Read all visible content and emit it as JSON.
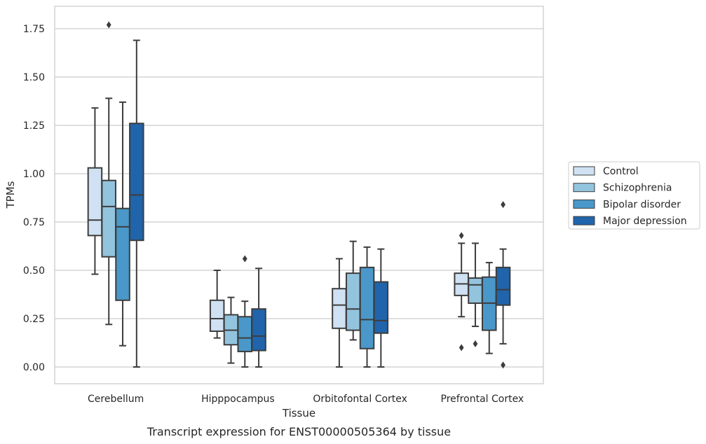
{
  "caption": "Transcript expression for ENST00000505364 by tissue",
  "chart_data": {
    "type": "box",
    "xlabel": "Tissue",
    "ylabel": "TPMs",
    "ylim": [
      -0.085,
      1.86
    ],
    "yticks": [
      0.0,
      0.25,
      0.5,
      0.75,
      1.0,
      1.25,
      1.5,
      1.75
    ],
    "ytick_labels": [
      "0.00",
      "0.25",
      "0.50",
      "0.75",
      "1.00",
      "1.25",
      "1.50",
      "1.75"
    ],
    "grid": "horizontal",
    "legend_position": "right",
    "categories": [
      "Cerebellum",
      "Hipppocampus",
      "Orbitofontal Cortex",
      "Prefrontal Cortex"
    ],
    "series": [
      {
        "name": "Control",
        "color": "#cfe1f2",
        "boxes": [
          {
            "whislo": 0.48,
            "q1": 0.68,
            "med": 0.76,
            "q3": 1.03,
            "whishi": 1.34,
            "fliers": []
          },
          {
            "whislo": 0.15,
            "q1": 0.185,
            "med": 0.25,
            "q3": 0.345,
            "whishi": 0.5,
            "fliers": []
          },
          {
            "whislo": 0.0,
            "q1": 0.2,
            "med": 0.32,
            "q3": 0.405,
            "whishi": 0.56,
            "fliers": []
          },
          {
            "whislo": 0.26,
            "q1": 0.37,
            "med": 0.43,
            "q3": 0.485,
            "whishi": 0.64,
            "fliers": [
              0.68,
              0.1
            ]
          }
        ]
      },
      {
        "name": "Schizophrenia",
        "color": "#93c4de",
        "boxes": [
          {
            "whislo": 0.22,
            "q1": 0.57,
            "med": 0.83,
            "q3": 0.965,
            "whishi": 1.39,
            "fliers": [
              1.77
            ]
          },
          {
            "whislo": 0.02,
            "q1": 0.115,
            "med": 0.19,
            "q3": 0.27,
            "whishi": 0.36,
            "fliers": []
          },
          {
            "whislo": 0.14,
            "q1": 0.19,
            "med": 0.3,
            "q3": 0.485,
            "whishi": 0.65,
            "fliers": []
          },
          {
            "whislo": 0.21,
            "q1": 0.33,
            "med": 0.425,
            "q3": 0.46,
            "whishi": 0.64,
            "fliers": [
              0.12
            ]
          }
        ]
      },
      {
        "name": "Bipolar disorder",
        "color": "#4a98c9",
        "boxes": [
          {
            "whislo": 0.11,
            "q1": 0.345,
            "med": 0.725,
            "q3": 0.82,
            "whishi": 1.37,
            "fliers": []
          },
          {
            "whislo": 0.0,
            "q1": 0.08,
            "med": 0.15,
            "q3": 0.26,
            "whishi": 0.34,
            "fliers": [
              0.56
            ]
          },
          {
            "whislo": 0.0,
            "q1": 0.095,
            "med": 0.245,
            "q3": 0.515,
            "whishi": 0.62,
            "fliers": []
          },
          {
            "whislo": 0.07,
            "q1": 0.19,
            "med": 0.33,
            "q3": 0.465,
            "whishi": 0.54,
            "fliers": []
          }
        ]
      },
      {
        "name": "Major depression",
        "color": "#2064ab",
        "boxes": [
          {
            "whislo": 0.0,
            "q1": 0.655,
            "med": 0.89,
            "q3": 1.26,
            "whishi": 1.69,
            "fliers": []
          },
          {
            "whislo": 0.0,
            "q1": 0.085,
            "med": 0.16,
            "q3": 0.3,
            "whishi": 0.51,
            "fliers": []
          },
          {
            "whislo": 0.0,
            "q1": 0.175,
            "med": 0.24,
            "q3": 0.44,
            "whishi": 0.61,
            "fliers": []
          },
          {
            "whislo": 0.12,
            "q1": 0.32,
            "med": 0.4,
            "q3": 0.515,
            "whishi": 0.61,
            "fliers": [
              0.84,
              0.01
            ]
          }
        ]
      }
    ]
  }
}
